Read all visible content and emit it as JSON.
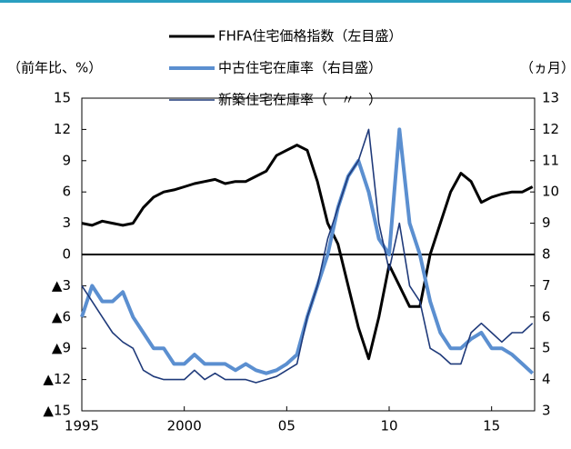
{
  "chart_data": {
    "type": "line",
    "legend": [
      "FHFA住宅価格指数（左目盛）",
      "中古住宅在庫率（右目盛）",
      "新築住宅在庫率（　〃　）"
    ],
    "y_label": "（前年比、%）",
    "y2_label": "（ヵ月）",
    "x": [
      1995,
      1995.5,
      1996,
      1996.5,
      1997,
      1997.5,
      1998,
      1998.5,
      1999,
      1999.5,
      2000,
      2000.5,
      2001,
      2001.5,
      2002,
      2002.5,
      2003,
      2003.5,
      2004,
      2004.5,
      2005,
      2005.5,
      2006,
      2006.5,
      2007,
      2007.5,
      2008,
      2008.5,
      2009,
      2009.5,
      2010,
      2010.5,
      2011,
      2011.5,
      2012,
      2012.5,
      2013,
      2013.5,
      2014,
      2014.5,
      2015,
      2015.5,
      2016,
      2016.5,
      2017
    ],
    "series": [
      {
        "name": "FHFA住宅価格指数（左目盛）",
        "color": "#000000",
        "width": 3,
        "axis": "y",
        "values": [
          3,
          2.8,
          3.2,
          3,
          2.8,
          3,
          4.5,
          5.5,
          6,
          6.2,
          6.5,
          6.8,
          7,
          7.2,
          6.8,
          7,
          7,
          7.5,
          8,
          9.5,
          10,
          10.5,
          10,
          7,
          3,
          1,
          -3,
          -7,
          -10,
          -6,
          -1,
          -3,
          -5,
          -5,
          0,
          3,
          6,
          7.8,
          7,
          5,
          5.5,
          5.8,
          6,
          6,
          6.5
        ]
      },
      {
        "name": "中古住宅在庫率（右目盛）",
        "color": "#5b8fd0",
        "width": 4,
        "axis": "y2",
        "values": [
          6,
          7,
          6.5,
          6.5,
          6.8,
          6,
          5.5,
          5,
          5,
          4.5,
          4.5,
          4.8,
          4.5,
          4.5,
          4.5,
          4.3,
          4.5,
          4.3,
          4.2,
          4.3,
          4.5,
          4.8,
          6,
          7,
          8,
          9.5,
          10.5,
          11,
          10,
          8.5,
          8,
          12,
          9,
          8,
          6.5,
          5.5,
          5,
          5,
          5.3,
          5.5,
          5,
          5,
          4.8,
          4.5,
          4.2
        ]
      },
      {
        "name": "新築住宅在庫率（　〃　）",
        "color": "#1f3a7a",
        "width": 1.6,
        "axis": "y2",
        "values": [
          7,
          6.5,
          6,
          5.5,
          5.2,
          5,
          4.3,
          4.1,
          4,
          4,
          4,
          4.3,
          4,
          4.2,
          4,
          4,
          4,
          3.9,
          4,
          4.1,
          4.3,
          4.5,
          6,
          7,
          8.5,
          9.5,
          10.5,
          11,
          12,
          9,
          7.5,
          9,
          7,
          6.5,
          5,
          4.8,
          4.5,
          4.5,
          5.5,
          5.8,
          5.5,
          5.2,
          5.5,
          5.5,
          5.8
        ]
      }
    ],
    "xlim": [
      1995,
      2017.1
    ],
    "xticks": [
      {
        "value": 1995,
        "label": "1995"
      },
      {
        "value": 2000,
        "label": "2000"
      },
      {
        "value": 2005,
        "label": "05"
      },
      {
        "value": 2010,
        "label": "10"
      },
      {
        "value": 2015,
        "label": "15"
      }
    ],
    "ylim": [
      -15,
      15
    ],
    "yticks": [
      15,
      12,
      9,
      6,
      3,
      0,
      {
        "value": -3,
        "label": "▲3"
      },
      {
        "value": -6,
        "label": "▲6"
      },
      {
        "value": -9,
        "label": "▲9"
      },
      {
        "value": -12,
        "label": "▲12"
      },
      {
        "value": -15,
        "label": "▲15"
      }
    ],
    "y2lim": [
      3,
      13
    ],
    "y2ticks": [
      13,
      12,
      11,
      10,
      9,
      8,
      7,
      6,
      5,
      4,
      3
    ]
  }
}
